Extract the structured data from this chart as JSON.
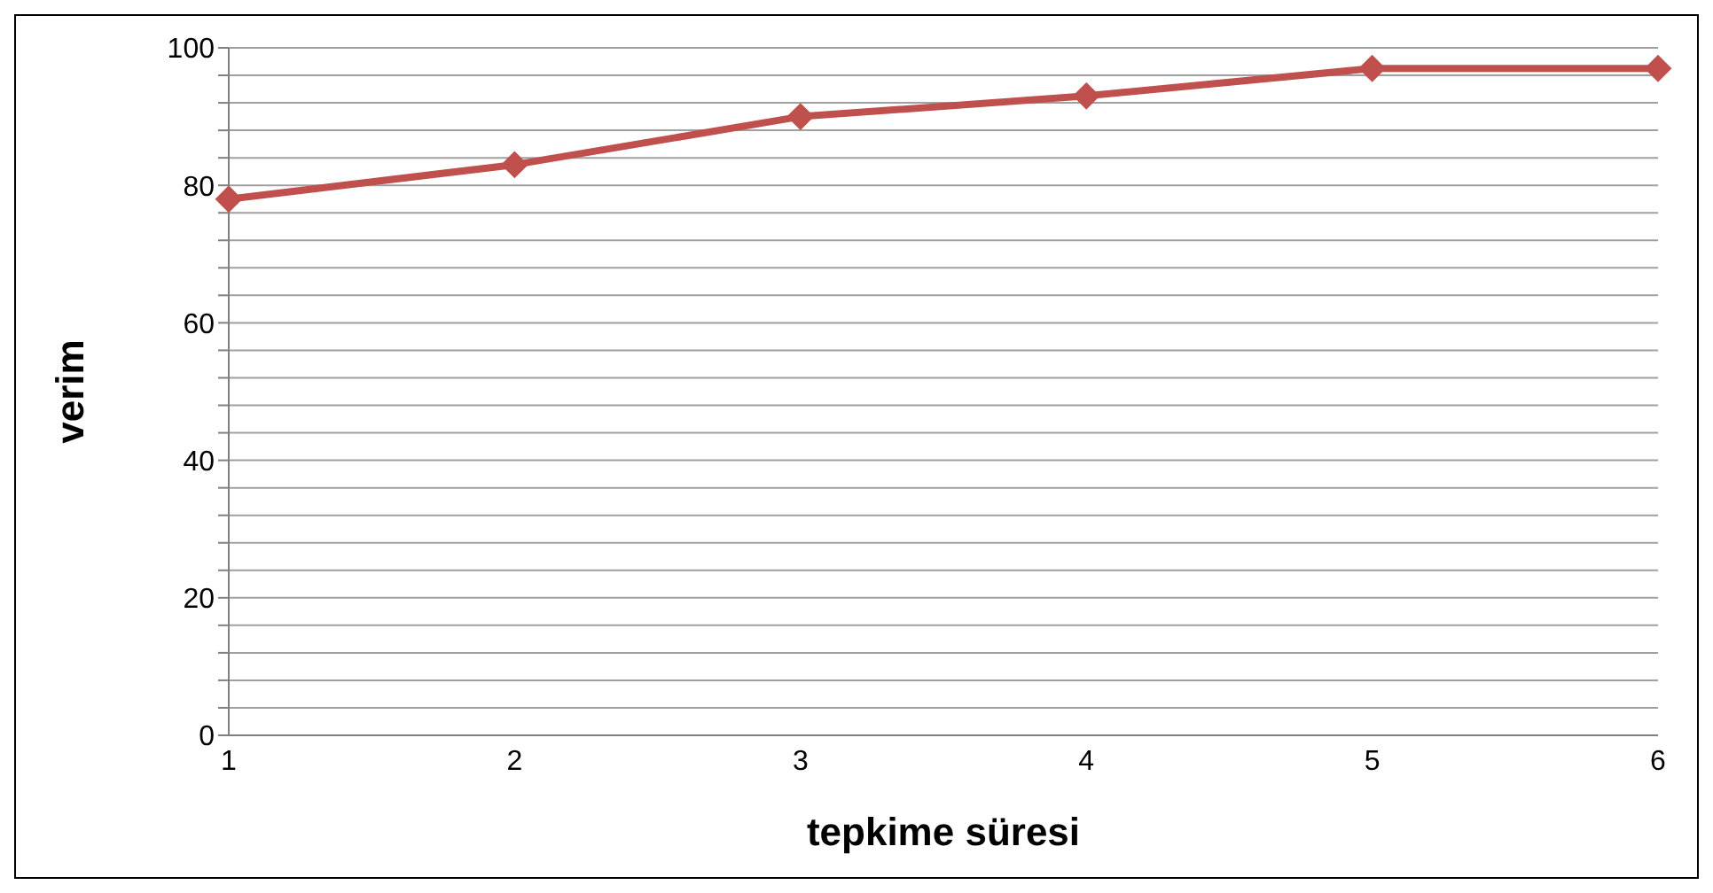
{
  "chart_data": {
    "type": "line",
    "xlabel": "tepkime süresi",
    "ylabel": "verim",
    "categories": [
      "1",
      "2",
      "3",
      "4",
      "5",
      "6"
    ],
    "series": [
      {
        "color": "#c0504d",
        "values": [
          78,
          83,
          90,
          93,
          97,
          97
        ]
      }
    ],
    "ylim": [
      0,
      100
    ],
    "yticks": [
      0,
      {
        "value": 4,
        "label": null
      },
      {
        "value": 8,
        "label": null
      },
      {
        "value": 12,
        "label": null
      },
      {
        "value": 16,
        "label": null
      },
      20,
      {
        "value": 24,
        "label": null
      },
      {
        "value": 28,
        "label": null
      },
      {
        "value": 32,
        "label": null
      },
      {
        "value": 36,
        "label": null
      },
      40,
      {
        "value": 44,
        "label": null
      },
      {
        "value": 48,
        "label": null
      },
      {
        "value": 52,
        "label": null
      },
      {
        "value": 56,
        "label": null
      },
      60,
      {
        "value": 64,
        "label": null
      },
      {
        "value": 68,
        "label": null
      },
      {
        "value": 72,
        "label": null
      },
      {
        "value": 76,
        "label": null
      },
      80,
      {
        "value": 84,
        "label": null
      },
      {
        "value": 88,
        "label": null
      },
      {
        "value": 92,
        "label": null
      },
      {
        "value": 96,
        "label": null
      },
      100
    ],
    "grid": "y",
    "marker": "diamond",
    "line_style": "solid",
    "legend": false
  }
}
